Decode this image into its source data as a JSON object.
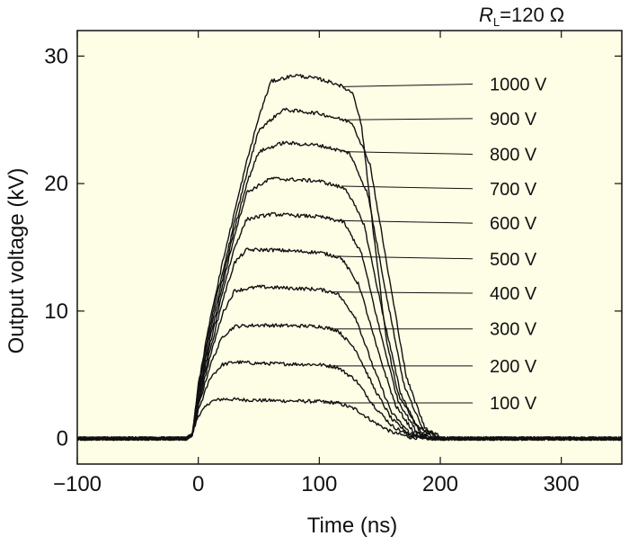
{
  "chart_data": {
    "type": "line",
    "title": "",
    "annotation": {
      "symbol": "R",
      "subscript": "L",
      "rest": "=120 Ω"
    },
    "xlabel": "Time (ns)",
    "ylabel": "Output voltage (kV)",
    "xlim": [
      -100,
      350
    ],
    "ylim": [
      -2,
      32
    ],
    "xticks": [
      -100,
      0,
      100,
      200,
      300
    ],
    "xtick_labels": [
      "−100",
      "0",
      "100",
      "200",
      "300"
    ],
    "yticks": [
      0,
      10,
      20,
      30
    ],
    "ytick_labels": [
      "0",
      "10",
      "20",
      "30"
    ],
    "grid": false,
    "background_color": "#fefde6",
    "line_color": "#111111",
    "series": [
      {
        "name": "100 V",
        "x": [
          -100,
          -10,
          -5,
          0,
          10,
          20,
          50,
          100,
          115,
          130,
          145,
          160,
          175,
          190,
          350
        ],
        "y": [
          0,
          0,
          0.3,
          1.8,
          2.9,
          3.1,
          3.0,
          2.9,
          2.8,
          2.3,
          1.3,
          0.5,
          0.1,
          0.0,
          0.0
        ]
      },
      {
        "name": "200 V",
        "x": [
          -100,
          -10,
          -5,
          0,
          10,
          20,
          30,
          50,
          100,
          115,
          130,
          145,
          160,
          175,
          190,
          350
        ],
        "y": [
          0,
          0,
          0.3,
          2.2,
          4.8,
          5.8,
          6.0,
          5.9,
          5.8,
          5.6,
          4.6,
          2.6,
          1.0,
          0.2,
          0.0,
          0.0
        ]
      },
      {
        "name": "300 V",
        "x": [
          -100,
          -10,
          -5,
          0,
          10,
          20,
          30,
          50,
          100,
          115,
          130,
          145,
          160,
          175,
          190,
          350
        ],
        "y": [
          0,
          0,
          0.3,
          2.5,
          5.8,
          8.0,
          8.8,
          8.9,
          8.8,
          8.5,
          7.0,
          4.0,
          1.5,
          0.3,
          0.0,
          0.0
        ]
      },
      {
        "name": "400 V",
        "x": [
          -100,
          -10,
          -5,
          0,
          10,
          20,
          30,
          50,
          100,
          115,
          130,
          145,
          160,
          175,
          190,
          350
        ],
        "y": [
          0,
          0,
          0.3,
          2.7,
          6.5,
          9.8,
          11.6,
          11.9,
          11.7,
          11.4,
          9.5,
          5.5,
          2.0,
          0.4,
          0.0,
          0.0
        ]
      },
      {
        "name": "500 V",
        "x": [
          -100,
          -10,
          -5,
          0,
          10,
          20,
          30,
          40,
          60,
          100,
          118,
          133,
          148,
          163,
          178,
          193,
          350
        ],
        "y": [
          0,
          0,
          0.3,
          3.0,
          7.0,
          10.8,
          13.8,
          14.8,
          14.8,
          14.6,
          14.2,
          12.0,
          7.0,
          2.6,
          0.5,
          0.0,
          0.0
        ]
      },
      {
        "name": "600 V",
        "x": [
          -100,
          -10,
          -5,
          0,
          10,
          20,
          30,
          40,
          60,
          100,
          120,
          135,
          150,
          165,
          180,
          195,
          350
        ],
        "y": [
          0,
          0,
          0.3,
          3.2,
          7.5,
          11.5,
          15.0,
          17.2,
          17.6,
          17.4,
          17.0,
          14.5,
          8.5,
          3.0,
          0.6,
          0.0,
          0.0
        ]
      },
      {
        "name": "700 V",
        "x": [
          -100,
          -10,
          -5,
          0,
          10,
          20,
          30,
          40,
          60,
          100,
          122,
          137,
          152,
          167,
          182,
          197,
          350
        ],
        "y": [
          0,
          0,
          0.3,
          3.5,
          8.0,
          12.0,
          16.0,
          19.3,
          20.4,
          20.2,
          19.6,
          16.8,
          10.0,
          3.6,
          0.7,
          0.0,
          0.0
        ]
      },
      {
        "name": "800 V",
        "x": [
          -100,
          -10,
          -5,
          0,
          10,
          20,
          30,
          40,
          50,
          70,
          100,
          125,
          140,
          155,
          170,
          185,
          200,
          350
        ],
        "y": [
          0,
          0,
          0.3,
          3.7,
          8.5,
          12.5,
          16.5,
          20.0,
          22.5,
          23.2,
          23.0,
          22.4,
          19.2,
          11.5,
          4.2,
          0.8,
          0.0,
          0.0
        ]
      },
      {
        "name": "900 V",
        "x": [
          -100,
          -10,
          -5,
          0,
          10,
          20,
          30,
          40,
          50,
          70,
          100,
          127,
          142,
          157,
          172,
          187,
          202,
          350
        ],
        "y": [
          0,
          0,
          0.3,
          4.0,
          9.0,
          13.0,
          17.0,
          20.8,
          24.2,
          25.8,
          25.5,
          24.8,
          21.5,
          13.0,
          4.8,
          0.9,
          0.0,
          0.0
        ]
      },
      {
        "name": "1000 V",
        "x": [
          -100,
          -10,
          -5,
          0,
          10,
          20,
          30,
          40,
          50,
          60,
          80,
          100,
          115,
          128,
          135,
          145,
          155,
          165,
          180,
          200,
          350
        ],
        "y": [
          0,
          0,
          0.3,
          4.2,
          9.5,
          13.8,
          17.8,
          21.7,
          25.2,
          28.0,
          28.5,
          28.2,
          27.8,
          27.1,
          24.5,
          16.0,
          8.0,
          3.5,
          1.0,
          0.0,
          0.0
        ]
      }
    ],
    "label_anchors": [
      {
        "series": "1000 V",
        "x": 120,
        "y": 27.6,
        "label_y": 27.8
      },
      {
        "series": "900 V",
        "x": 122,
        "y": 25.0,
        "label_y": 25.1
      },
      {
        "series": "800 V",
        "x": 120,
        "y": 22.5,
        "label_y": 22.3
      },
      {
        "series": "700 V",
        "x": 118,
        "y": 19.8,
        "label_y": 19.6
      },
      {
        "series": "600 V",
        "x": 115,
        "y": 17.1,
        "label_y": 16.9
      },
      {
        "series": "500 V",
        "x": 112,
        "y": 14.3,
        "label_y": 14.1
      },
      {
        "series": "400 V",
        "x": 110,
        "y": 11.5,
        "label_y": 11.4
      },
      {
        "series": "300 V",
        "x": 108,
        "y": 8.6,
        "label_y": 8.6
      },
      {
        "series": "200 V",
        "x": 105,
        "y": 5.7,
        "label_y": 5.7
      },
      {
        "series": "100 V",
        "x": 103,
        "y": 2.8,
        "label_y": 2.8
      }
    ]
  }
}
